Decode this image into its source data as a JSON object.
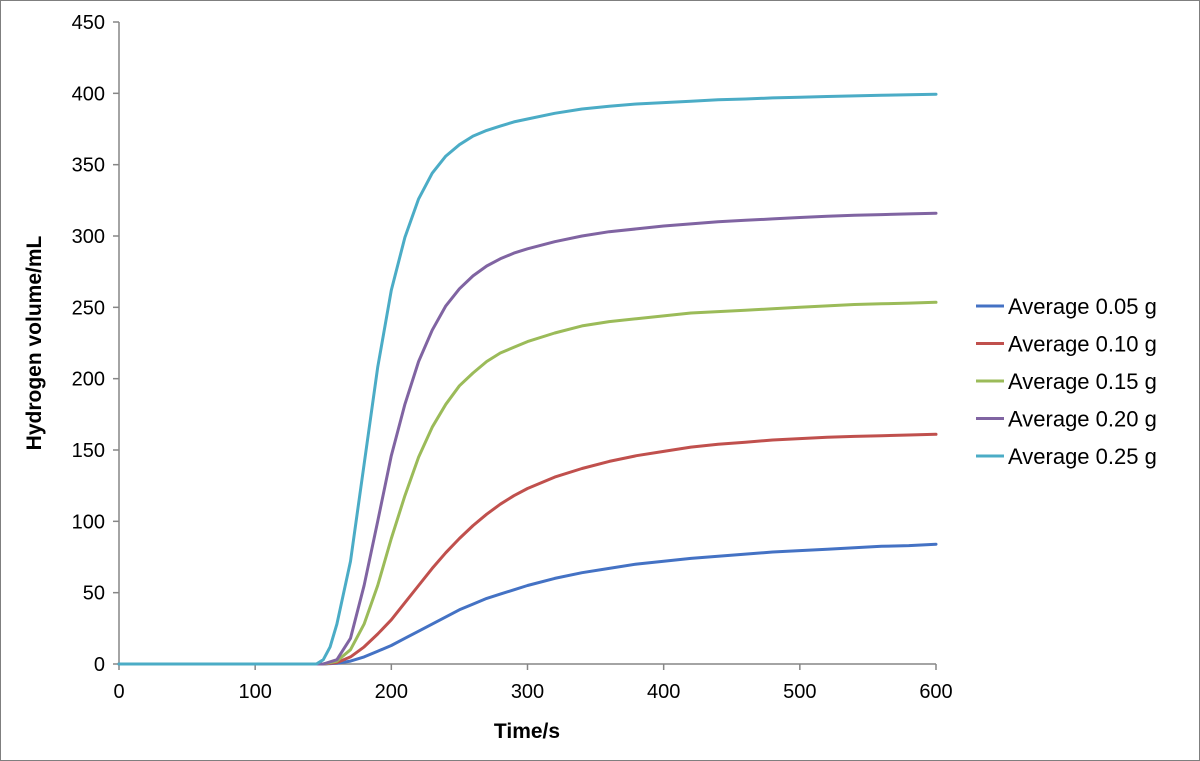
{
  "chart_data": {
    "type": "line",
    "title": "",
    "xlabel": "Time/s",
    "ylabel": "Hydrogen volume/mL",
    "xlim": [
      0,
      600
    ],
    "ylim": [
      0,
      450
    ],
    "xticks": [
      "0",
      "100",
      "200",
      "300",
      "400",
      "500",
      "600"
    ],
    "yticks": [
      "0",
      "50",
      "100",
      "150",
      "200",
      "250",
      "300",
      "350",
      "400",
      "450"
    ],
    "grid": false,
    "legend_position": "right",
    "series": [
      {
        "name": "Average 0.05 g",
        "color": "#4472c4",
        "x": [
          0,
          100,
          150,
          160,
          170,
          180,
          190,
          200,
          210,
          220,
          230,
          240,
          250,
          260,
          270,
          280,
          290,
          300,
          320,
          340,
          360,
          380,
          400,
          420,
          440,
          460,
          480,
          500,
          520,
          540,
          560,
          580,
          600
        ],
        "y": [
          0,
          0,
          0,
          0.5,
          2,
          5,
          9,
          13,
          18,
          23,
          28,
          33,
          38,
          42,
          46,
          49,
          52,
          55,
          60,
          64,
          67,
          70,
          72,
          74,
          75.5,
          77,
          78.5,
          79.5,
          80.5,
          81.5,
          82.5,
          83,
          84
        ]
      },
      {
        "name": "Average 0.10 g",
        "color": "#c0504d",
        "x": [
          0,
          100,
          150,
          160,
          170,
          180,
          190,
          200,
          210,
          220,
          230,
          240,
          250,
          260,
          270,
          280,
          290,
          300,
          320,
          340,
          360,
          380,
          400,
          420,
          440,
          460,
          480,
          500,
          520,
          540,
          560,
          580,
          600
        ],
        "y": [
          0,
          0,
          0,
          1,
          5,
          12,
          21,
          31,
          43,
          55,
          67,
          78,
          88,
          97,
          105,
          112,
          118,
          123,
          131,
          137,
          142,
          146,
          149,
          152,
          154,
          155.5,
          157,
          158,
          159,
          159.5,
          160,
          160.5,
          161
        ]
      },
      {
        "name": "Average 0.15 g",
        "color": "#9bbb59",
        "x": [
          0,
          100,
          150,
          160,
          170,
          180,
          190,
          200,
          210,
          220,
          230,
          240,
          250,
          260,
          270,
          280,
          290,
          300,
          320,
          340,
          360,
          380,
          400,
          420,
          440,
          460,
          480,
          500,
          520,
          540,
          560,
          580,
          600
        ],
        "y": [
          0,
          0,
          0,
          2,
          10,
          28,
          55,
          88,
          118,
          145,
          166,
          182,
          195,
          204,
          212,
          218,
          222,
          226,
          232,
          237,
          240,
          242,
          244,
          246,
          247,
          248,
          249,
          250,
          251,
          252,
          252.5,
          253,
          253.5
        ]
      },
      {
        "name": "Average 0.20 g",
        "color": "#8064a2",
        "x": [
          0,
          100,
          150,
          160,
          170,
          180,
          190,
          200,
          210,
          220,
          230,
          240,
          250,
          260,
          270,
          280,
          290,
          300,
          320,
          340,
          360,
          380,
          400,
          420,
          440,
          460,
          480,
          500,
          520,
          540,
          560,
          580,
          600
        ],
        "y": [
          0,
          0,
          0,
          3,
          18,
          55,
          100,
          146,
          182,
          212,
          234,
          251,
          263,
          272,
          279,
          284,
          288,
          291,
          296,
          300,
          303,
          305,
          307,
          308.5,
          310,
          311,
          312,
          313,
          313.8,
          314.5,
          315,
          315.5,
          316
        ]
      },
      {
        "name": "Average 0.25 g",
        "color": "#4bacc6",
        "x": [
          0,
          100,
          145,
          150,
          155,
          160,
          170,
          180,
          190,
          200,
          210,
          220,
          230,
          240,
          250,
          260,
          270,
          280,
          290,
          300,
          320,
          340,
          360,
          380,
          400,
          420,
          440,
          460,
          480,
          500,
          520,
          540,
          560,
          580,
          600
        ],
        "y": [
          0,
          0,
          0,
          3,
          12,
          28,
          72,
          140,
          208,
          262,
          299,
          326,
          344,
          356,
          364,
          370,
          374,
          377,
          380,
          382,
          386,
          389,
          391,
          392.5,
          393.5,
          394.5,
          395.5,
          396,
          396.8,
          397.3,
          397.8,
          398.2,
          398.6,
          399,
          399.4
        ]
      }
    ]
  }
}
